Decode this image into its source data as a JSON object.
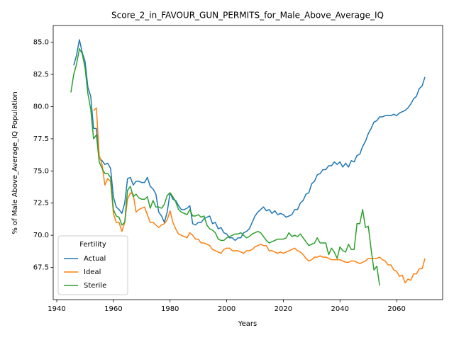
{
  "chart_data": {
    "type": "line",
    "title": "Score_2_in_FAVOUR_GUN_PERMITS_for_Male_Above_Average_IQ",
    "x_label": "Years",
    "y_label": "% of Male Above_Average_IQ Population",
    "legend_title": "Fertility",
    "legend": "lower left",
    "xlim": [
      1938.75,
      2076.25
    ],
    "ylim": [
      65.0,
      86.3
    ],
    "xticks": [
      1940,
      1960,
      1980,
      2000,
      2020,
      2040,
      2060
    ],
    "yticks": [
      67.5,
      {
        "value": 70,
        "label": "70.0"
      },
      72.5,
      {
        "value": 75,
        "label": "75.0"
      },
      77.5,
      {
        "value": 80,
        "label": "80.0"
      },
      82.5,
      {
        "value": 85,
        "label": "85.0"
      }
    ],
    "x": [
      1945,
      1946,
      1947,
      1948,
      1949,
      1950,
      1951,
      1952,
      1953,
      1954,
      1955,
      1956,
      1957,
      1958,
      1959,
      1960,
      1961,
      1962,
      1963,
      1964,
      1965,
      1966,
      1967,
      1968,
      1969,
      1970,
      1971,
      1972,
      1973,
      1974,
      1975,
      1976,
      1977,
      1978,
      1979,
      1980,
      1981,
      1982,
      1983,
      1984,
      1985,
      1986,
      1987,
      1988,
      1989,
      1990,
      1991,
      1992,
      1993,
      1994,
      1995,
      1996,
      1997,
      1998,
      1999,
      2000,
      2001,
      2002,
      2003,
      2004,
      2005,
      2006,
      2007,
      2008,
      2009,
      2010,
      2011,
      2012,
      2013,
      2014,
      2015,
      2016,
      2017,
      2018,
      2019,
      2020,
      2021,
      2022,
      2023,
      2024,
      2025,
      2026,
      2027,
      2028,
      2029,
      2030,
      2031,
      2032,
      2033,
      2034,
      2035,
      2036,
      2037,
      2038,
      2039,
      2040,
      2041,
      2042,
      2043,
      2044,
      2045,
      2046,
      2047,
      2048,
      2049,
      2050,
      2051,
      2052,
      2053,
      2054,
      2055,
      2056,
      2057,
      2058,
      2059,
      2060,
      2061,
      2062,
      2063,
      2064,
      2065,
      2066,
      2067,
      2068,
      2069,
      2070
    ],
    "series": [
      {
        "name": "Actual",
        "color": "#1f77b4",
        "values": [
          null,
          83.2,
          84.0,
          85.2,
          84.2,
          83.5,
          81.5,
          80.8,
          78.3,
          78.3,
          76.0,
          75.8,
          75.5,
          75.6,
          75.2,
          73.0,
          72.2,
          72.0,
          71.7,
          72.5,
          74.4,
          74.5,
          73.9,
          74.2,
          74.2,
          74.1,
          74.1,
          74.5,
          73.8,
          73.6,
          73.2,
          71.8,
          71.5,
          71.0,
          71.8,
          73.3,
          72.8,
          72.7,
          72.3,
          72.0,
          72.0,
          72.1,
          72.3,
          70.9,
          70.8,
          71.0,
          71.0,
          71.3,
          71.4,
          71.5,
          70.9,
          71.0,
          70.5,
          70.6,
          70.2,
          70.1,
          69.8,
          69.8,
          69.6,
          69.8,
          69.8,
          70.2,
          70.3,
          70.5,
          71.0,
          71.5,
          71.8,
          72.0,
          72.2,
          71.9,
          72.0,
          71.7,
          71.9,
          71.6,
          71.7,
          71.6,
          71.4,
          71.5,
          71.6,
          72.0,
          72.0,
          72.5,
          72.7,
          73.2,
          73.3,
          74.0,
          74.2,
          74.7,
          74.8,
          75.1,
          75.1,
          75.4,
          75.4,
          75.7,
          75.5,
          75.7,
          75.3,
          75.6,
          75.3,
          75.8,
          75.7,
          76.2,
          76.3,
          76.9,
          77.3,
          77.9,
          78.3,
          78.8,
          78.9,
          79.2,
          79.2,
          79.3,
          79.3,
          79.3,
          79.4,
          79.3,
          79.5,
          79.6,
          79.7,
          79.9,
          80.2,
          80.6,
          80.8,
          81.4,
          81.6,
          82.3
        ]
      },
      {
        "name": "Ideal",
        "color": "#ff7f0e",
        "values": [
          null,
          null,
          null,
          null,
          null,
          null,
          null,
          null,
          79.7,
          79.9,
          76.2,
          75.5,
          73.9,
          74.4,
          74.2,
          71.7,
          71.0,
          71.0,
          70.3,
          71.0,
          72.8,
          73.3,
          73.2,
          71.8,
          72.0,
          72.1,
          72.2,
          71.6,
          71.0,
          71.0,
          70.8,
          70.6,
          70.8,
          70.9,
          71.2,
          71.9,
          71.0,
          70.5,
          70.1,
          70.0,
          69.9,
          69.8,
          70.2,
          70.0,
          69.7,
          69.7,
          69.4,
          69.4,
          69.3,
          69.2,
          68.9,
          68.8,
          68.7,
          68.6,
          68.9,
          69.0,
          69.0,
          68.8,
          68.8,
          68.8,
          68.7,
          68.6,
          68.8,
          68.8,
          68.9,
          69.1,
          69.2,
          69.3,
          69.2,
          69.2,
          68.8,
          68.8,
          68.7,
          68.6,
          68.7,
          68.6,
          68.7,
          68.8,
          68.9,
          69.0,
          68.8,
          68.7,
          68.5,
          68.2,
          68.0,
          68.1,
          68.3,
          68.3,
          68.4,
          68.3,
          68.3,
          68.2,
          68.1,
          68.1,
          68.1,
          68.1,
          68.0,
          67.9,
          67.9,
          68.0,
          68.0,
          67.9,
          67.8,
          67.9,
          68.0,
          68.2,
          68.2,
          68.2,
          68.2,
          68.3,
          68.1,
          68.0,
          67.7,
          67.7,
          67.3,
          67.2,
          66.8,
          66.9,
          66.3,
          66.6,
          66.5,
          67.0,
          67.0,
          67.4,
          67.4,
          68.2
        ]
      },
      {
        "name": "Sterile",
        "color": "#2ca02c",
        "values": [
          81.1,
          82.5,
          83.3,
          84.5,
          84.1,
          83.0,
          81.0,
          79.8,
          77.5,
          77.8,
          75.7,
          75.2,
          74.8,
          74.8,
          74.5,
          72.0,
          71.5,
          71.4,
          70.8,
          71.0,
          73.5,
          73.8,
          73.0,
          73.2,
          72.9,
          72.8,
          72.8,
          73.0,
          72.1,
          72.7,
          72.2,
          72.2,
          72.1,
          72.4,
          73.1,
          73.3,
          73.0,
          72.6,
          72.0,
          71.8,
          71.7,
          71.6,
          72.0,
          71.5,
          71.5,
          71.6,
          71.4,
          71.5,
          70.8,
          70.5,
          70.4,
          70.2,
          69.7,
          69.6,
          69.6,
          69.8,
          69.9,
          70.0,
          70.1,
          70.1,
          70.2,
          70.0,
          69.8,
          69.9,
          70.1,
          70.2,
          70.3,
          70.2,
          69.9,
          69.6,
          69.4,
          69.5,
          69.6,
          69.7,
          69.7,
          69.7,
          69.8,
          70.2,
          69.9,
          70.0,
          69.9,
          70.1,
          69.8,
          69.5,
          69.2,
          69.3,
          69.4,
          69.8,
          69.4,
          69.4,
          69.4,
          68.5,
          69.0,
          68.7,
          68.2,
          69.1,
          68.8,
          68.7,
          69.3,
          68.9,
          68.9,
          70.9,
          70.9,
          72.0,
          70.6,
          70.7,
          68.9,
          67.3,
          67.6,
          66.1,
          null,
          null,
          null,
          null,
          null,
          null,
          null,
          null,
          null,
          null,
          null,
          null,
          null,
          null,
          null,
          null
        ]
      }
    ]
  }
}
